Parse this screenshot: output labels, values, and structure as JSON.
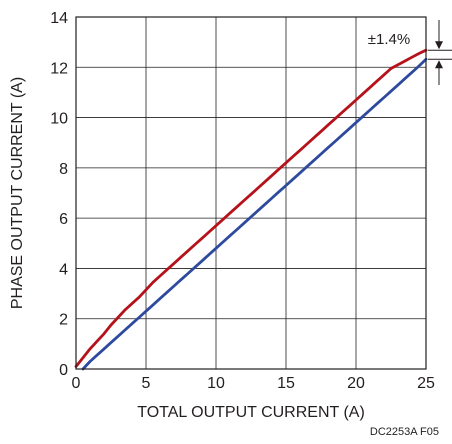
{
  "chart_data": {
    "type": "line",
    "xlabel": "TOTAL OUTPUT CURRENT (A)",
    "ylabel": "PHASE OUTPUT CURRENT (A)",
    "xlim": [
      0,
      25
    ],
    "ylim": [
      0,
      14
    ],
    "x_ticks": [
      0,
      5,
      10,
      15,
      20,
      25
    ],
    "y_ticks": [
      0,
      2,
      4,
      6,
      8,
      10,
      12,
      14
    ],
    "grid": true,
    "annotation": "±1.4%",
    "footnote": "DC2253A F05",
    "series": [
      {
        "color": "#b5121b",
        "x": [
          0,
          0.5,
          1,
          1.5,
          2,
          2.5,
          3,
          3.5,
          4,
          4.5,
          5,
          5.5,
          6,
          6.5,
          7,
          7.5,
          8,
          8.5,
          9,
          9.5,
          10,
          10.5,
          11,
          11.5,
          12,
          12.5,
          13,
          13.5,
          14,
          14.5,
          15,
          15.5,
          16,
          16.5,
          17,
          17.5,
          18,
          18.5,
          19,
          19.5,
          20,
          20.5,
          21,
          21.5,
          22,
          22.5,
          23,
          23.5,
          24,
          24.5,
          25
        ],
        "values": [
          0.1,
          0.45,
          0.8,
          1.1,
          1.4,
          1.75,
          2.05,
          2.35,
          2.6,
          2.85,
          3.15,
          3.45,
          3.7,
          3.95,
          4.2,
          4.45,
          4.7,
          4.95,
          5.2,
          5.45,
          5.7,
          5.95,
          6.2,
          6.45,
          6.7,
          6.95,
          7.2,
          7.45,
          7.7,
          7.95,
          8.2,
          8.45,
          8.7,
          8.95,
          9.2,
          9.45,
          9.7,
          9.95,
          10.2,
          10.45,
          10.7,
          10.95,
          11.2,
          11.45,
          11.7,
          11.95,
          12.1,
          12.25,
          12.4,
          12.55,
          12.68
        ]
      },
      {
        "color": "#2e4a9e",
        "x": [
          0.5,
          1,
          1.5,
          2,
          2.5,
          3,
          3.5,
          4,
          4.5,
          5,
          5.5,
          6,
          6.5,
          7,
          7.5,
          8,
          8.5,
          9,
          9.5,
          10,
          10.5,
          11,
          11.5,
          12,
          12.5,
          13,
          13.5,
          14,
          14.5,
          15,
          15.5,
          16,
          16.5,
          17,
          17.5,
          18,
          18.5,
          19,
          19.5,
          20,
          20.5,
          21,
          21.5,
          22,
          22.5,
          23,
          23.5,
          24,
          24.5,
          25
        ],
        "values": [
          0.0,
          0.3,
          0.55,
          0.8,
          1.05,
          1.3,
          1.55,
          1.8,
          2.05,
          2.3,
          2.55,
          2.8,
          3.05,
          3.3,
          3.55,
          3.8,
          4.05,
          4.3,
          4.55,
          4.8,
          5.05,
          5.3,
          5.55,
          5.8,
          6.05,
          6.3,
          6.55,
          6.8,
          7.05,
          7.3,
          7.55,
          7.8,
          8.05,
          8.3,
          8.55,
          8.8,
          9.05,
          9.3,
          9.55,
          9.8,
          10.05,
          10.3,
          10.55,
          10.8,
          11.05,
          11.3,
          11.55,
          11.8,
          12.05,
          12.32
        ]
      }
    ]
  }
}
